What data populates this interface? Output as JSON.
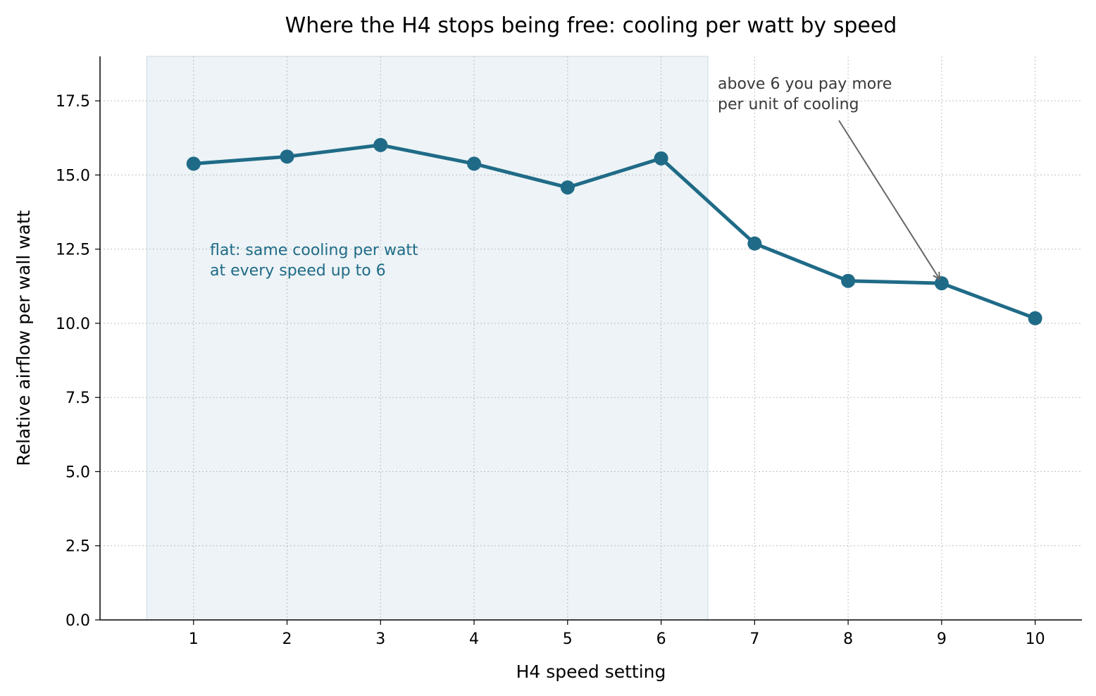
{
  "chart_data": {
    "type": "line",
    "title": "Where the H4 stops being free: cooling per watt by speed",
    "xlabel": "H4 speed setting",
    "ylabel": "Relative airflow per wall watt",
    "x": [
      1,
      2,
      3,
      4,
      5,
      6,
      7,
      8,
      9,
      10
    ],
    "series": [
      {
        "values": [
          15.38,
          15.62,
          16.01,
          15.38,
          14.58,
          15.56,
          12.69,
          11.43,
          11.35,
          10.17
        ],
        "color": "#1f6b87"
      }
    ],
    "xlim": [
      0,
      10.5
    ],
    "ylim": [
      0,
      19
    ],
    "xticks": [
      "1",
      "2",
      "3",
      "4",
      "5",
      "6",
      "7",
      "8",
      "9",
      "10"
    ],
    "yticks": [
      "0.0",
      "2.5",
      "5.0",
      "7.5",
      "10.0",
      "12.5",
      "15.0",
      "17.5"
    ],
    "grid": true,
    "shaded_region": {
      "x_from": 0.5,
      "x_to": 6.5,
      "color": "#dce8ee"
    },
    "annotations": {
      "flat": {
        "lines": [
          "flat: same cooling per watt",
          "at every speed up to 6"
        ],
        "color": "#1f6b87"
      },
      "arrow_note": {
        "lines": [
          "above 6 you pay more",
          "per unit of cooling"
        ],
        "color": "#3a3a3a",
        "points_to_x": 9
      }
    }
  }
}
